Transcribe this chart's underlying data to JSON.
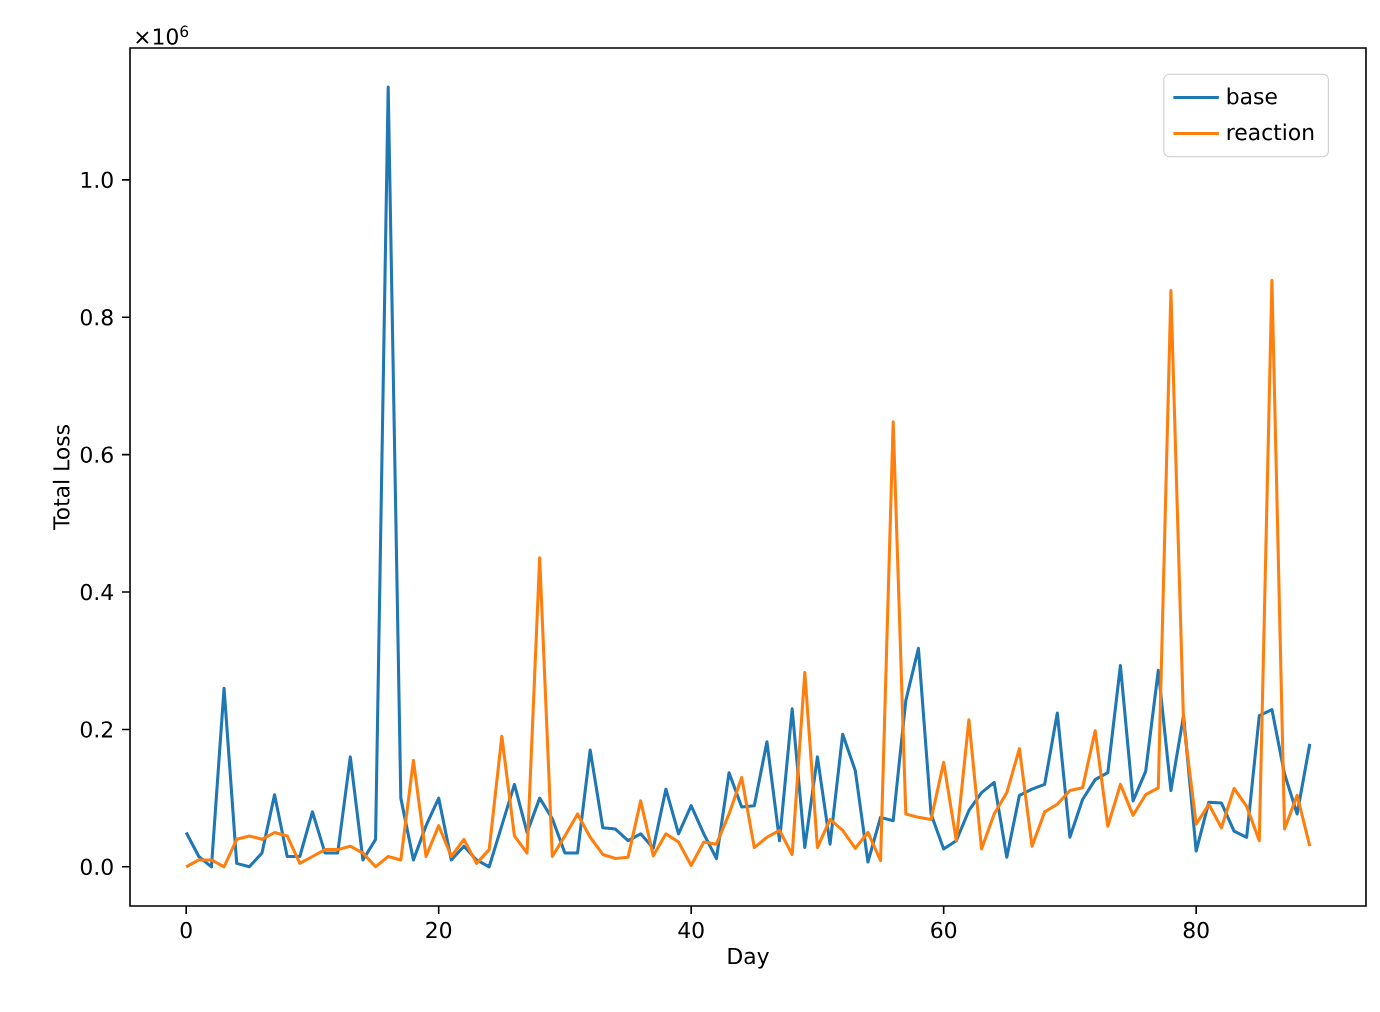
{
  "chart_data": {
    "type": "line",
    "xlabel": "Day",
    "ylabel": "Total Loss",
    "annotations": [
      "×10$^{6}$"
    ],
    "x": [
      0,
      1,
      2,
      3,
      4,
      5,
      6,
      7,
      8,
      9,
      10,
      11,
      12,
      13,
      14,
      15,
      16,
      17,
      18,
      19,
      20,
      21,
      22,
      23,
      24,
      25,
      26,
      27,
      28,
      29,
      30,
      31,
      32,
      33,
      34,
      35,
      36,
      37,
      38,
      39,
      40,
      41,
      42,
      43,
      44,
      45,
      46,
      47,
      48,
      49,
      50,
      51,
      52,
      53,
      54,
      55,
      56,
      57,
      58,
      59,
      60,
      61,
      62,
      63,
      64,
      65,
      66,
      67,
      68,
      69,
      70,
      71,
      72,
      73,
      74,
      75,
      76,
      77,
      78,
      79,
      80,
      81,
      82,
      83,
      84,
      85,
      86,
      87,
      88,
      89
    ],
    "series": [
      {
        "name": "base",
        "color": "#1f77b4",
        "values": [
          0.05,
          0.015,
          0,
          0.26,
          0.005,
          0,
          0.02,
          0.105,
          0.015,
          0.015,
          0.08,
          0.02,
          0.02,
          0.16,
          0.01,
          0.04,
          1.135,
          0.1,
          0.01,
          0.06,
          0.1,
          0.01,
          0.03,
          0.01,
          0,
          0.06,
          0.12,
          0.05,
          0.1,
          0.07,
          0.02,
          0.02,
          0.17,
          0.057,
          0.055,
          0.038,
          0.048,
          0.027,
          0.113,
          0.048,
          0.089,
          0.048,
          0.012,
          0.137,
          0.087,
          0.089,
          0.182,
          0.038,
          0.23,
          0.028,
          0.16,
          0.033,
          0.193,
          0.14,
          0.007,
          0.072,
          0.067,
          0.242,
          0.318,
          0.077,
          0.026,
          0.038,
          0.082,
          0.108,
          0.123,
          0.014,
          0.104,
          0.113,
          0.12,
          0.224,
          0.043,
          0.098,
          0.127,
          0.137,
          0.293,
          0.096,
          0.139,
          0.286,
          0.111,
          0.22,
          0.023,
          0.094,
          0.093,
          0.052,
          0.043,
          0.22,
          0.229,
          0.135,
          0.077,
          0.179
        ]
      },
      {
        "name": "reaction",
        "color": "#ff7f0e",
        "values": [
          0,
          0.01,
          0.01,
          0,
          0.04,
          0.045,
          0.04,
          0.05,
          0.045,
          0.005,
          0.015,
          0.025,
          0.025,
          0.03,
          0.02,
          0,
          0.015,
          0.01,
          0.155,
          0.015,
          0.06,
          0.015,
          0.04,
          0.005,
          0.025,
          0.19,
          0.045,
          0.02,
          0.45,
          0.015,
          0.045,
          0.077,
          0.043,
          0.018,
          0.012,
          0.014,
          0.096,
          0.016,
          0.048,
          0.036,
          0.002,
          0.036,
          0.033,
          0.077,
          0.13,
          0.028,
          0.043,
          0.053,
          0.018,
          0.283,
          0.028,
          0.069,
          0.053,
          0.027,
          0.05,
          0.009,
          0.648,
          0.077,
          0.072,
          0.069,
          0.152,
          0.038,
          0.214,
          0.026,
          0.077,
          0.108,
          0.172,
          0.03,
          0.08,
          0.091,
          0.111,
          0.115,
          0.198,
          0.059,
          0.12,
          0.075,
          0.105,
          0.115,
          0.839,
          0.21,
          0.062,
          0.091,
          0.057,
          0.114,
          0.088,
          0.038,
          0.854,
          0.055,
          0.104,
          0.03
        ]
      }
    ],
    "xlim": [
      -4.45,
      93.45
    ],
    "ylim": [
      -0.057,
      1.192
    ],
    "xticks": [
      0,
      20,
      40,
      60,
      80
    ],
    "yticks": [
      {
        "value": 0,
        "label": "0.0"
      },
      0.2,
      0.4,
      0.6,
      0.8,
      {
        "value": 1,
        "label": "1.0"
      }
    ],
    "legend": "top right"
  }
}
